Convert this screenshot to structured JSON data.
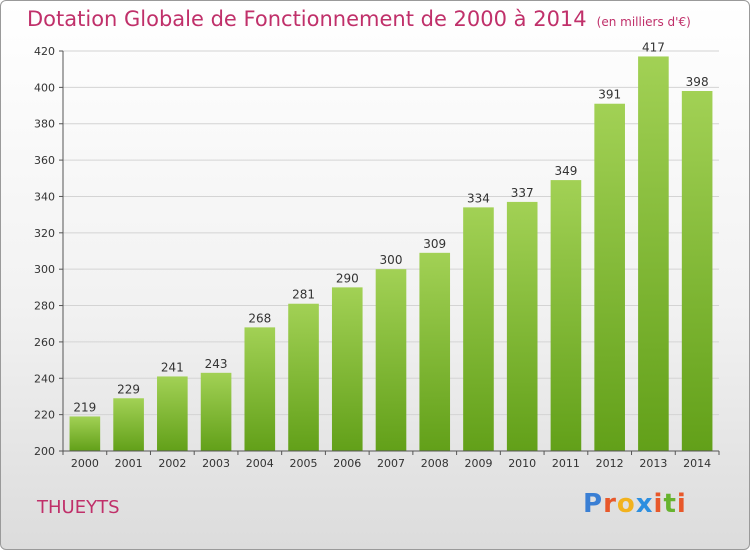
{
  "header": {
    "title": "Dotation Globale de Fonctionnement de 2000 à 2014",
    "unit": "(en milliers d'€)"
  },
  "footer": {
    "commune": "THUEYTS",
    "logo_letters": [
      "P",
      "r",
      "o",
      "x",
      "i",
      "t",
      "i"
    ],
    "logo_colors": [
      "#3a7fd4",
      "#e8582a",
      "#f2b21d",
      "#2d8fe0",
      "#e8582a",
      "#67b32e",
      "#e8582a"
    ]
  },
  "chart_data": {
    "type": "bar",
    "categories": [
      "2000",
      "2001",
      "2002",
      "2003",
      "2004",
      "2005",
      "2006",
      "2007",
      "2008",
      "2009",
      "2010",
      "2011",
      "2012",
      "2013",
      "2014"
    ],
    "values": [
      219,
      229,
      241,
      243,
      268,
      281,
      290,
      300,
      309,
      334,
      337,
      349,
      391,
      417,
      398
    ],
    "ylim": [
      200,
      420
    ],
    "yticks": [
      200,
      220,
      240,
      260,
      280,
      300,
      320,
      340,
      360,
      380,
      400,
      420
    ],
    "grid": true,
    "bar_color_top": "#a2d155",
    "bar_color_bottom": "#62a019"
  }
}
